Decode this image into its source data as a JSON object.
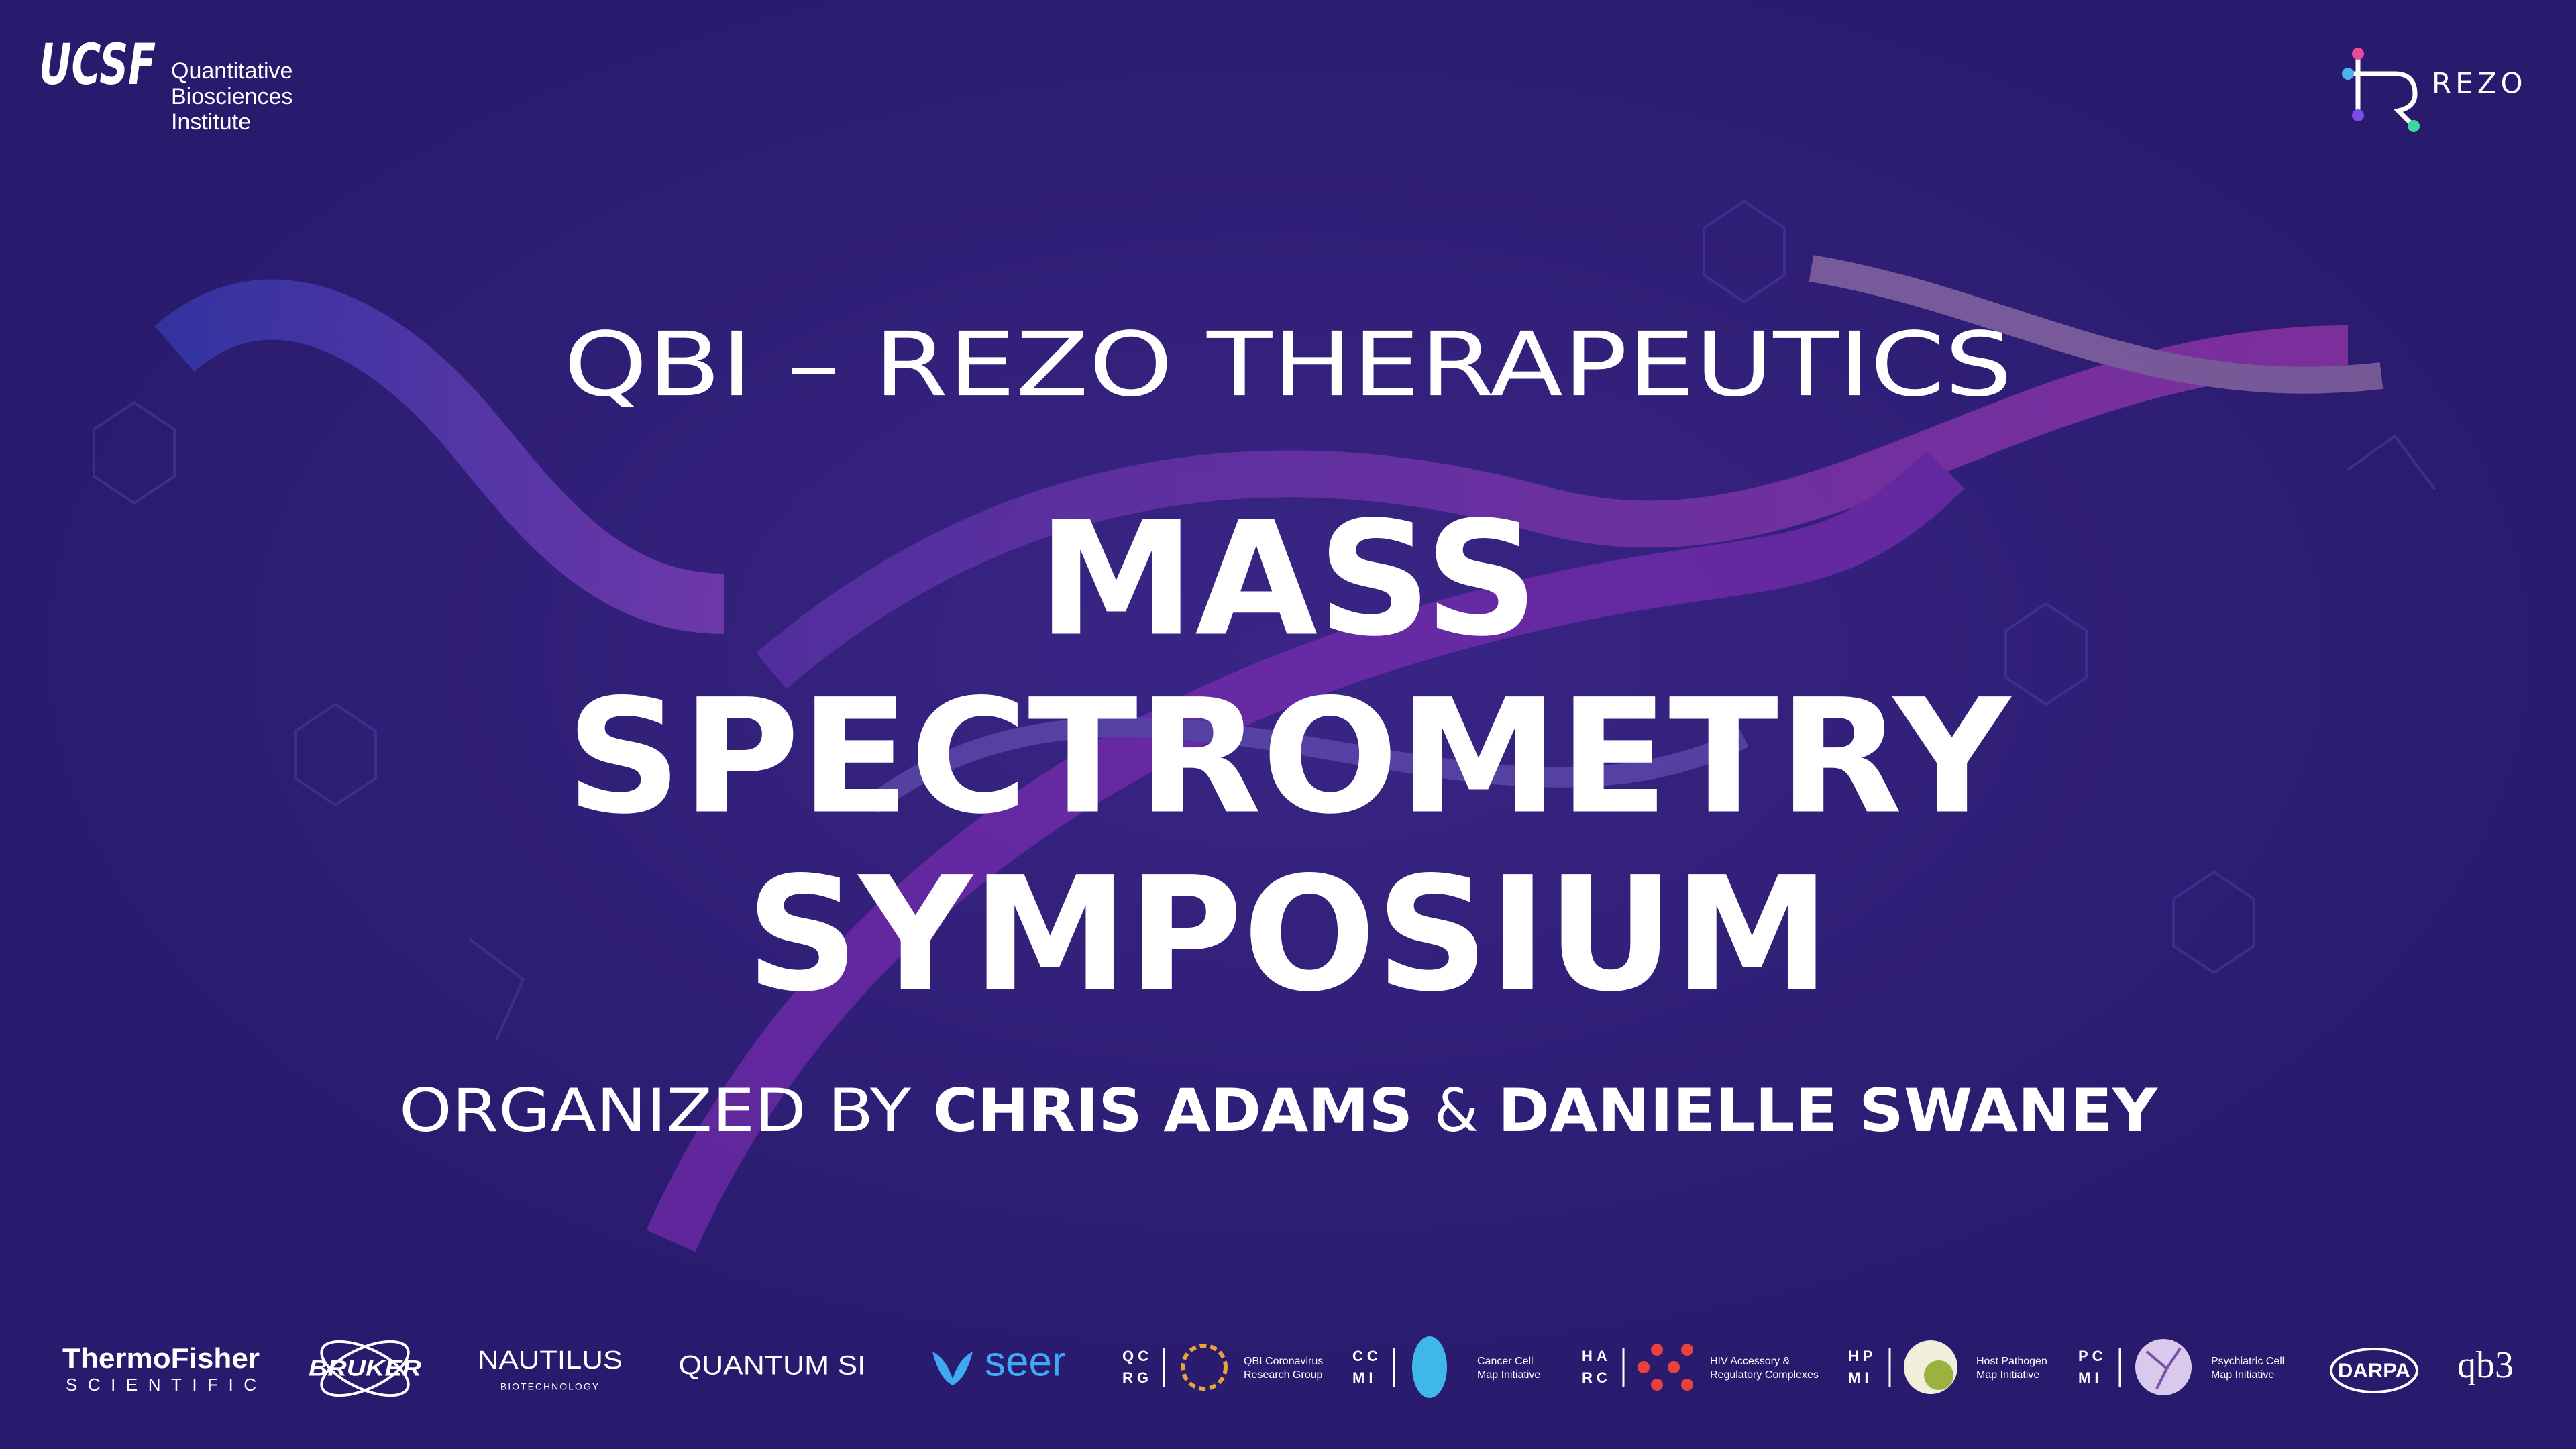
{
  "header": {
    "ucsf": {
      "logo": "UCSF",
      "lines": [
        "Quantitative",
        "Biosciences",
        "Institute"
      ]
    },
    "rezo": {
      "logo": "REZO"
    }
  },
  "title": {
    "kicker": "QBI – REZO THERAPEUTICS",
    "lines": [
      "MASS",
      "SPECTROMETRY",
      "SYMPOSIUM"
    ]
  },
  "organizers": {
    "prefix": "ORGANIZED BY",
    "first": "CHRIS ADAMS",
    "joiner": "&",
    "second": "DANIELLE SWANEY"
  },
  "sponsors": {
    "thermofisher": {
      "name": "ThermoFisher",
      "sub": "SCIENTIFIC"
    },
    "bruker": {
      "name": "BRUKER"
    },
    "nautilus": {
      "name": "NAUTILUS",
      "sub": "BIOTECHNOLOGY"
    },
    "quantumsi": {
      "name": "QUANTUM SI"
    },
    "seer": {
      "name": "seer"
    },
    "qcrg": {
      "letters": [
        "QC",
        "RG"
      ],
      "label": [
        "QBI Coronavirus",
        "Research Group"
      ]
    },
    "ccmi": {
      "letters": [
        "CC",
        "MI"
      ],
      "label": [
        "Cancer Cell",
        "Map Initiative"
      ]
    },
    "harc": {
      "letters": [
        "HA",
        "RC"
      ],
      "label": [
        "HIV Accessory &",
        "Regulatory Complexes"
      ]
    },
    "hpmi": {
      "letters": [
        "HP",
        "MI"
      ],
      "label": [
        "Host Pathogen",
        "Map Initiative"
      ]
    },
    "pcmi": {
      "letters": [
        "PC",
        "MI"
      ],
      "label": [
        "Psychiatric Cell",
        "Map Initiative"
      ]
    },
    "darpa": {
      "name": "DARPA"
    },
    "qb3": {
      "name": "qb3"
    }
  }
}
